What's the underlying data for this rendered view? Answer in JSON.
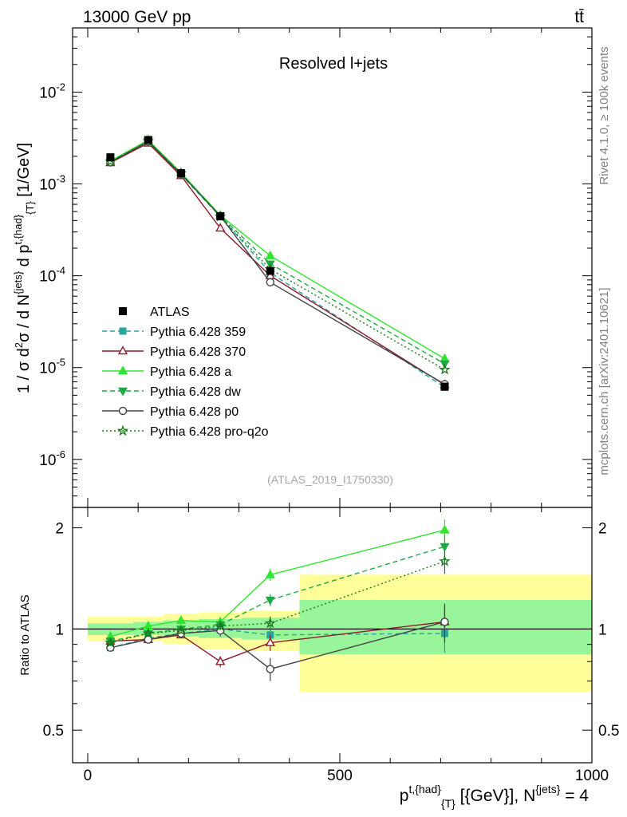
{
  "header": {
    "left": "13000 GeV pp",
    "right": "tt̄"
  },
  "side": {
    "rivet": "Rivet 4.1.0, ≥ 100k events",
    "mcplots": "mcplots.cern.ch [arXiv:2401.10621]"
  },
  "chart_data": {
    "type": "line",
    "title": "Resolved l+jets",
    "watermark": "(ATLAS_2019_I1750330)",
    "xlabel": "p^{t,{had}}_{T} [{GeV}], N^{jets} = 4",
    "ylabel": "1 / σ d²σ / d N^{jets} d p^{t,{had}}_{T} [1/GeV]",
    "ratio_ylabel": "Ratio to ATLAS",
    "xlim": [
      -30,
      1000
    ],
    "ylim": [
      3e-07,
      0.05
    ],
    "ratio_ylim": [
      0.4,
      2.3
    ],
    "x_ticks": [
      0,
      500,
      1000
    ],
    "y_ticks": [
      {
        "value": 1e-06,
        "exp": "-6"
      },
      {
        "value": 1e-05,
        "exp": "-5"
      },
      {
        "value": 0.0001,
        "exp": "-4"
      },
      {
        "value": 0.001,
        "exp": "-3"
      },
      {
        "value": 0.01,
        "exp": "-2"
      }
    ],
    "ratio_ticks": [
      0.5,
      1,
      2
    ],
    "x": [
      45,
      120,
      185,
      263,
      362,
      708
    ],
    "bins": [
      [
        0,
        90
      ],
      [
        90,
        150
      ],
      [
        150,
        220
      ],
      [
        220,
        305
      ],
      [
        305,
        420
      ],
      [
        420,
        1000
      ]
    ],
    "atlas": {
      "name": "ATLAS",
      "values": [
        0.00195,
        0.00301,
        0.00131,
        0.000445,
        0.000113,
        6.2e-06
      ],
      "band_inner": [
        [
          0.96,
          1.04
        ],
        [
          0.96,
          1.05
        ],
        [
          0.95,
          1.06
        ],
        [
          0.94,
          1.07
        ],
        [
          0.93,
          1.08
        ],
        [
          0.84,
          1.22
        ]
      ],
      "band_outer": [
        [
          0.92,
          1.09
        ],
        [
          0.92,
          1.09
        ],
        [
          0.9,
          1.11
        ],
        [
          0.87,
          1.12
        ],
        [
          0.86,
          1.13
        ],
        [
          0.65,
          1.45
        ]
      ]
    },
    "series": [
      {
        "name": "Pythia 6.428 359",
        "color": "#26a69a",
        "dash": "6,4",
        "marker": "square_filled",
        "values": [
          0.00172,
          0.00282,
          0.00126,
          0.00044,
          0.000108,
          6.1e-06
        ],
        "ratio": [
          0.88,
          0.94,
          0.97,
          1.0,
          0.96,
          0.97
        ],
        "ratio_err": [
          0.02,
          0.02,
          0.02,
          0.03,
          0.05,
          0.12
        ]
      },
      {
        "name": "Pythia 6.428 370",
        "color": "#8b1a2b",
        "dash": "",
        "marker": "triangle_open",
        "values": [
          0.0017,
          0.00278,
          0.00123,
          0.00033,
          0.0001,
          6.5e-06
        ],
        "ratio": [
          0.92,
          0.93,
          0.96,
          0.8,
          0.91,
          1.05
        ],
        "ratio_err": [
          0.02,
          0.02,
          0.02,
          0.03,
          0.05,
          0.12
        ]
      },
      {
        "name": "Pythia 6.428 a",
        "color": "#2ee62e",
        "dash": "",
        "marker": "triangle_filled",
        "values": [
          0.00178,
          0.003,
          0.00133,
          0.000455,
          0.000165,
          1.25e-05
        ],
        "ratio": [
          0.95,
          1.02,
          1.06,
          1.05,
          1.45,
          1.97
        ],
        "ratio_err": [
          0.02,
          0.02,
          0.03,
          0.03,
          0.06,
          0.15
        ]
      },
      {
        "name": "Pythia 6.428 dw",
        "color": "#1ea844",
        "dash": "6,4",
        "marker": "triangle_down_filled",
        "values": [
          0.00175,
          0.00292,
          0.0013,
          0.00045,
          0.000135,
          1.1e-05
        ],
        "ratio": [
          0.92,
          0.97,
          1.0,
          1.03,
          1.22,
          1.76
        ],
        "ratio_err": [
          0.02,
          0.02,
          0.02,
          0.03,
          0.05,
          0.14
        ]
      },
      {
        "name": "Pythia 6.428 p0",
        "color": "#444444",
        "dash": "",
        "marker": "circle_open",
        "values": [
          0.00172,
          0.0029,
          0.00128,
          0.000448,
          8.5e-05,
          6.6e-06
        ],
        "ratio": [
          0.88,
          0.93,
          0.97,
          0.99,
          0.76,
          1.05
        ],
        "ratio_err": [
          0.02,
          0.02,
          0.02,
          0.04,
          0.06,
          0.14
        ]
      },
      {
        "name": "Pythia 6.428 pro-q2o",
        "color": "#1a7a1a",
        "dash": "2,3",
        "marker": "star_open",
        "values": [
          0.00175,
          0.00293,
          0.0013,
          0.00044,
          0.000118,
          9.5e-06
        ],
        "ratio": [
          0.91,
          0.97,
          0.99,
          1.02,
          1.04,
          1.59
        ],
        "ratio_err": [
          0.02,
          0.02,
          0.02,
          0.03,
          0.05,
          0.13
        ]
      }
    ]
  }
}
